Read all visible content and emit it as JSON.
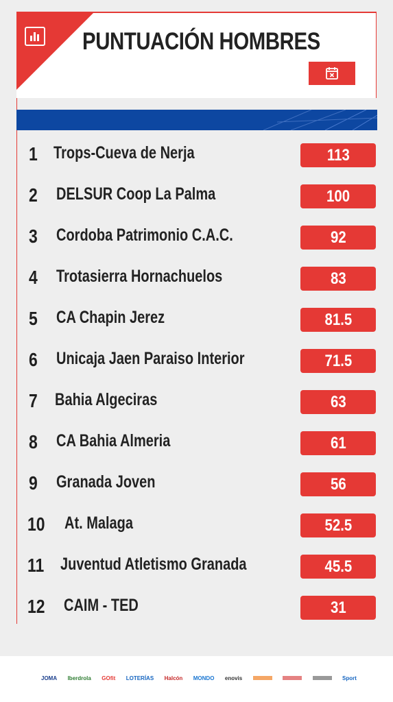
{
  "header": {
    "title": "PUNTUACIÓN HOMBRES",
    "chart_icon": "bar-chart-icon",
    "calendar_icon": "calendar-x-icon"
  },
  "colors": {
    "accent": "#e53935",
    "banner": "#0d47a1",
    "background": "#eeeeee"
  },
  "rankings": [
    {
      "rank": "1",
      "team": "Trops-Cueva de Nerja",
      "points": "113"
    },
    {
      "rank": "2",
      "team": "DELSUR Coop La Palma",
      "points": "100"
    },
    {
      "rank": "3",
      "team": "Cordoba Patrimonio C.A.C.",
      "points": "92"
    },
    {
      "rank": "4",
      "team": "Trotasierra Hornachuelos",
      "points": "83"
    },
    {
      "rank": "5",
      "team": "CA Chapin Jerez",
      "points": "81.5"
    },
    {
      "rank": "6",
      "team": "Unicaja Jaen Paraiso Interior",
      "points": "71.5"
    },
    {
      "rank": "7",
      "team": "Bahia Algeciras",
      "points": "63"
    },
    {
      "rank": "8",
      "team": "CA Bahia Almeria",
      "points": "61"
    },
    {
      "rank": "9",
      "team": "Granada Joven",
      "points": "56"
    },
    {
      "rank": "10",
      "team": "At. Malaga",
      "points": "52.5"
    },
    {
      "rank": "11",
      "team": "Juventud Atletismo Granada",
      "points": "45.5"
    },
    {
      "rank": "12",
      "team": "CAIM - TED",
      "points": "31"
    }
  ],
  "sponsors": [
    "JOMA",
    "Iberdrola",
    "GOfit",
    "LOTERÍAS",
    "Halcón",
    "MONDO",
    "enovis",
    "",
    "",
    "",
    "Sport"
  ]
}
